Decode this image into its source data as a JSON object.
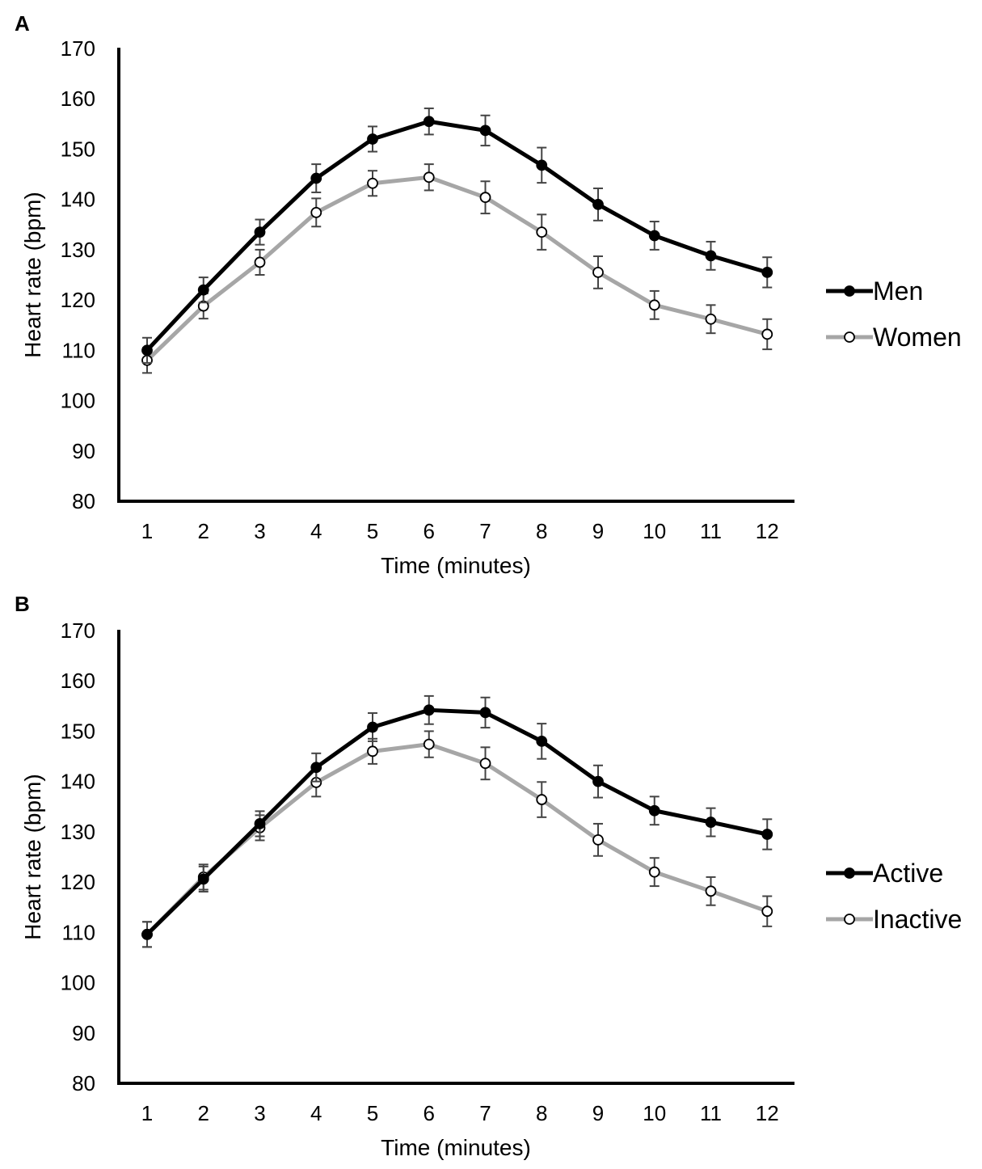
{
  "chart_data": [
    {
      "type": "line",
      "panel_label": "A",
      "xlabel": "Time (minutes)",
      "ylabel": "Heart rate (bpm)",
      "ylim": [
        80,
        170
      ],
      "yticks": [
        "80",
        "90",
        "100",
        "110",
        "120",
        "130",
        "140",
        "150",
        "160",
        "170"
      ],
      "categories": [
        "1",
        "2",
        "3",
        "4",
        "5",
        "6",
        "7",
        "8",
        "9",
        "10",
        "11",
        "12"
      ],
      "grid": false,
      "legend_position": "right",
      "series": [
        {
          "name": "Men",
          "color": "#000000",
          "marker": "filled-circle",
          "values": [
            110,
            122,
            133.5,
            144.2,
            152,
            155.5,
            153.7,
            146.8,
            139,
            132.8,
            128.8,
            125.5
          ],
          "errors": [
            2.5,
            2.5,
            2.5,
            2.8,
            2.5,
            2.6,
            3.0,
            3.5,
            3.2,
            2.8,
            2.8,
            3.0
          ]
        },
        {
          "name": "Women",
          "color": "#a6a6a6",
          "marker": "open-circle",
          "values": [
            108,
            118.8,
            127.5,
            137.4,
            143.2,
            144.4,
            140.4,
            133.5,
            125.5,
            119,
            116.2,
            113.2
          ],
          "errors": [
            2.5,
            2.5,
            2.5,
            2.8,
            2.5,
            2.6,
            3.2,
            3.5,
            3.2,
            2.8,
            2.8,
            3.0
          ]
        }
      ]
    },
    {
      "type": "line",
      "panel_label": "B",
      "xlabel": "Time (minutes)",
      "ylabel": "Heart rate (bpm)",
      "ylim": [
        80,
        170
      ],
      "yticks": [
        "80",
        "90",
        "100",
        "110",
        "120",
        "130",
        "140",
        "150",
        "160",
        "170"
      ],
      "categories": [
        "1",
        "2",
        "3",
        "4",
        "5",
        "6",
        "7",
        "8",
        "9",
        "10",
        "11",
        "12"
      ],
      "grid": false,
      "legend_position": "right",
      "series": [
        {
          "name": "Active",
          "color": "#000000",
          "marker": "filled-circle",
          "values": [
            109.6,
            120.6,
            131.6,
            142.8,
            150.8,
            154.2,
            153.7,
            148,
            140,
            134.2,
            131.9,
            129.5
          ],
          "errors": [
            2.5,
            2.5,
            2.5,
            2.8,
            2.8,
            2.8,
            3.0,
            3.5,
            3.2,
            2.8,
            2.8,
            3.0
          ]
        },
        {
          "name": "Inactive",
          "color": "#a6a6a6",
          "marker": "open-circle",
          "values": [
            109.6,
            121,
            130.8,
            139.8,
            146,
            147.4,
            143.6,
            136.4,
            128.4,
            122,
            118.2,
            114.2
          ],
          "errors": [
            2.5,
            2.5,
            2.5,
            2.8,
            2.5,
            2.6,
            3.2,
            3.5,
            3.2,
            2.8,
            2.8,
            3.0
          ]
        }
      ]
    }
  ]
}
